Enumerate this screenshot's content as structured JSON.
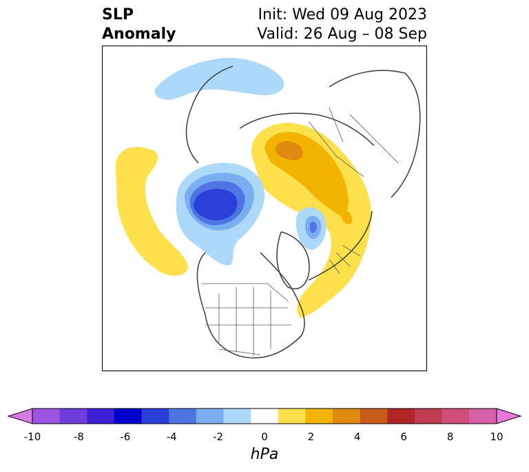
{
  "title": {
    "variable_line1": "SLP",
    "variable_line2": "Anomaly",
    "init": "Init: Wed 09 Aug 2023",
    "valid": "Valid: 26 Aug – 08 Sep"
  },
  "colorbar": {
    "unit": "hPa",
    "ticks": [
      "-10",
      "-8",
      "-6",
      "-4",
      "-2",
      "0",
      "2",
      "4",
      "6",
      "8",
      "10"
    ],
    "colors": [
      "#d77ae6",
      "#9b55e0",
      "#6f3ddb",
      "#3a1fd6",
      "#0000cc",
      "#2b3fd9",
      "#4f74e3",
      "#7aaef0",
      "#acd9f9",
      "#ffffff",
      "#fde04c",
      "#f2b400",
      "#e08a10",
      "#c85a1a",
      "#b02626",
      "#c03a50",
      "#cf4f78",
      "#d861a8",
      "#e878dc"
    ]
  },
  "map": {
    "projection": "north-polar-stereographic",
    "anomaly_colors": {
      "neg_light": "#acd9f9",
      "neg_mid": "#7aaef0",
      "neg_strong": "#4f74e3",
      "neg_deep": "#2b3fd9",
      "pos_light": "#fde04c",
      "pos_mid": "#f2b400",
      "pos_strong": "#e08a10"
    }
  }
}
